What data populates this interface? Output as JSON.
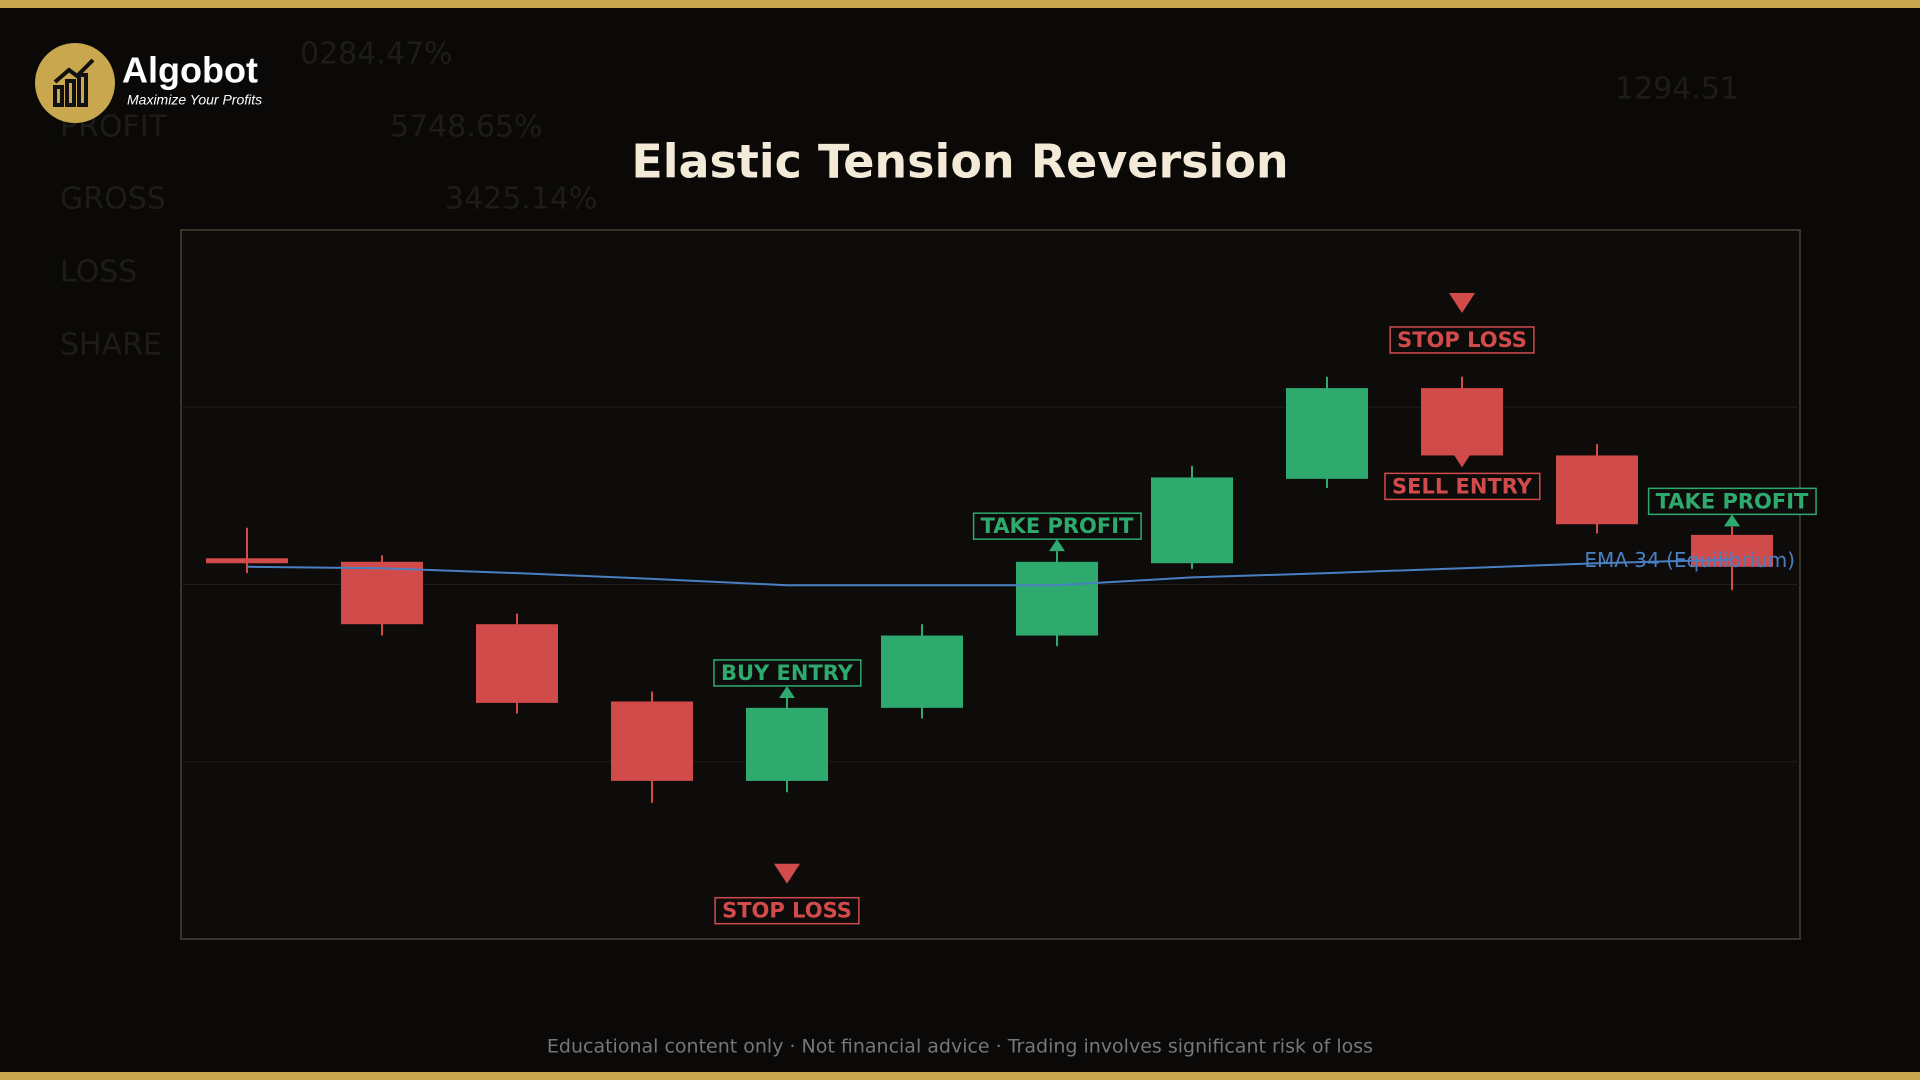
{
  "logo": {
    "name": "Algobot",
    "tagline": "Maximize Your Profits"
  },
  "background_text": [
    "0284.47%",
    "PROFIT",
    "5748.65%",
    "GROSS",
    "3425.14%",
    "LOSS",
    "SHARE",
    "1294.51"
  ],
  "footer": "Educational content only  ·  Not financial advice  ·  Trading involves significant risk of loss",
  "chart_data": {
    "type": "candlestick",
    "title": "Elastic Tension Reversion",
    "open": [
      53.7,
      53.2,
      44.4,
      33.5,
      22.3,
      32.6,
      42.8,
      53.0,
      64.9,
      77.7,
      68.2,
      57.0
    ],
    "high": [
      58.0,
      54.1,
      45.9,
      34.9,
      34.0,
      44.4,
      54.7,
      66.7,
      79.3,
      79.3,
      69.8,
      58.2
    ],
    "low": [
      51.6,
      42.8,
      31.8,
      19.2,
      20.7,
      31.1,
      41.3,
      52.2,
      63.6,
      66.8,
      57.2,
      49.2
    ],
    "close": [
      53.4,
      44.4,
      33.3,
      22.3,
      32.6,
      42.8,
      53.2,
      65.1,
      77.7,
      68.2,
      58.5,
      52.5
    ],
    "up_color": "#2eaa6e",
    "down_color": "#d24b4b",
    "series": [
      {
        "name": "EMA 34 (Equilibrium)",
        "color": "#4a7fc1",
        "values": [
          52.5,
          52.3,
          51.6,
          50.8,
          49.9,
          49.9,
          49.9,
          51.0,
          51.6,
          52.3,
          53.0,
          53.5
        ]
      }
    ],
    "ylim": [
      0,
      100
    ],
    "yticks": [
      25,
      50,
      75
    ],
    "grid": true,
    "annotations": [
      {
        "text": "BUY ENTRY",
        "candle": 4,
        "placement": "above",
        "color": "#2eaa6e"
      },
      {
        "text": "STOP LOSS",
        "candle": 4,
        "value": 7.8,
        "color": "#d24b4b"
      },
      {
        "text": "TAKE PROFIT",
        "candle": 6,
        "placement": "above",
        "color": "#2eaa6e"
      },
      {
        "text": "STOP LOSS",
        "candle": 9,
        "value": 88.3,
        "color": "#d24b4b"
      },
      {
        "text": "SELL ENTRY",
        "candle": 9,
        "placement": "below",
        "color": "#d24b4b"
      },
      {
        "text": "TAKE PROFIT",
        "candle": 11,
        "placement": "above",
        "color": "#2eaa6e"
      }
    ]
  }
}
